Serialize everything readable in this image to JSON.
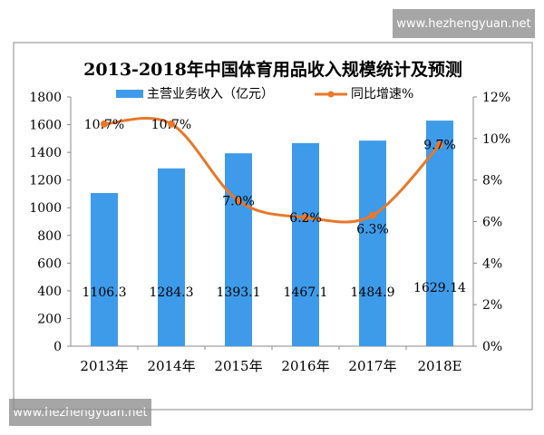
{
  "watermark": "www.hezhengyuan.net",
  "chart_data": {
    "type": "bar",
    "title": "2013-2018年中国体育用品收入规模统计及预测",
    "categories": [
      "2013年",
      "2014年",
      "2015年",
      "2016年",
      "2017年",
      "2018E"
    ],
    "series": [
      {
        "name": "主营业务收入（亿元）",
        "type": "bar",
        "axis": "left",
        "values": [
          1106.3,
          1284.3,
          1393.1,
          1467.1,
          1484.9,
          1629.14
        ],
        "labels": [
          "1106.3",
          "1284.3",
          "1393.1",
          "1467.1",
          "1484.9",
          "1629.14"
        ],
        "color": "#3d9be9"
      },
      {
        "name": "同比增速%",
        "type": "line",
        "axis": "right",
        "values": [
          10.7,
          10.7,
          7.0,
          6.2,
          6.3,
          9.7
        ],
        "labels": [
          "10.7%",
          "10.7%",
          "7.0%",
          "6.2%",
          "6.3%",
          "9.7%"
        ],
        "color": "#e8782a"
      }
    ],
    "left_axis": {
      "ylim": [
        0,
        1800
      ],
      "ticks": [
        "0",
        "200",
        "400",
        "600",
        "800",
        "1000",
        "1200",
        "1400",
        "1600",
        "1800"
      ]
    },
    "right_axis": {
      "ylim": [
        0,
        12
      ],
      "ticks": [
        "0%",
        "2%",
        "4%",
        "6%",
        "8%",
        "10%",
        "12%"
      ]
    },
    "legend": "top",
    "grid": false
  }
}
